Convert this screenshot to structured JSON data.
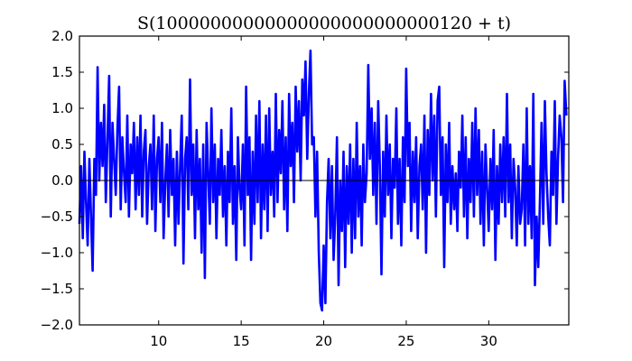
{
  "chart_data": {
    "type": "line",
    "title": "S(10000000000000000000000000120 + t)",
    "xlabel": "",
    "ylabel": "",
    "xlim": [
      5.2,
      34.85
    ],
    "ylim": [
      -2.0,
      2.0
    ],
    "x_ticks": [
      10,
      15,
      20,
      25,
      30
    ],
    "x_tick_labels": [
      "10",
      "15",
      "20",
      "25",
      "30"
    ],
    "y_ticks": [
      -2.0,
      -1.5,
      -1.0,
      -0.5,
      0.0,
      0.5,
      1.0,
      1.5,
      2.0
    ],
    "y_tick_labels": [
      "−2.0",
      "−1.5",
      "−1.0",
      "−0.5",
      "0.0",
      "0.5",
      "1.0",
      "1.5",
      "2.0"
    ],
    "grid": false,
    "zero_line": true,
    "line_color": "#0000ff",
    "zero_line_color": "#000000",
    "series": [
      {
        "x_start": 5.2,
        "x_step": 0.1,
        "values": [
          -0.6,
          0.2,
          -0.8,
          0.4,
          -0.3,
          -0.9,
          0.3,
          -0.5,
          -1.25,
          0.3,
          -0.2,
          1.57,
          0.0,
          0.8,
          0.2,
          1.05,
          -0.3,
          0.6,
          1.45,
          -0.5,
          0.8,
          0.3,
          -0.2,
          0.7,
          1.3,
          -0.4,
          0.6,
          0.1,
          -0.3,
          0.9,
          -0.5,
          0.5,
          0.1,
          0.8,
          -0.4,
          0.6,
          -0.2,
          0.9,
          -0.5,
          0.4,
          0.7,
          -0.6,
          0.2,
          0.5,
          -0.4,
          0.9,
          -0.7,
          0.3,
          0.6,
          -0.3,
          0.8,
          -0.8,
          0.0,
          0.5,
          -0.5,
          0.7,
          -0.2,
          0.3,
          -0.9,
          0.4,
          -0.6,
          0.2,
          0.9,
          -1.15,
          0.3,
          0.6,
          -0.4,
          1.4,
          -0.2,
          0.5,
          -0.8,
          0.7,
          -0.4,
          0.3,
          -1.0,
          0.5,
          -1.35,
          0.8,
          0.1,
          -0.6,
          1.0,
          -0.3,
          0.5,
          -0.8,
          0.3,
          -0.2,
          0.7,
          -0.5,
          0.2,
          -0.9,
          0.4,
          -0.3,
          1.0,
          -0.6,
          0.2,
          -1.1,
          0.6,
          -0.1,
          -0.4,
          0.5,
          -0.9,
          1.3,
          -0.2,
          0.6,
          -1.1,
          0.4,
          -0.6,
          0.9,
          -0.3,
          1.1,
          -0.8,
          0.5,
          -0.4,
          0.9,
          -0.7,
          1.0,
          -0.2,
          0.4,
          -0.5,
          1.2,
          -0.3,
          0.7,
          0.1,
          1.1,
          -0.4,
          0.6,
          -0.7,
          1.2,
          0.2,
          0.8,
          -0.3,
          1.3,
          0.4,
          1.1,
          0.0,
          1.4,
          0.9,
          1.65,
          0.3,
          1.2,
          1.8,
          0.5,
          0.6,
          -0.5,
          0.4,
          -1.0,
          -1.7,
          -1.8,
          -0.9,
          -1.7,
          -0.3,
          0.3,
          -0.8,
          0.2,
          -1.1,
          -0.5,
          0.6,
          -1.45,
          0.0,
          -0.7,
          0.4,
          -1.2,
          0.2,
          -0.6,
          0.5,
          -1.0,
          0.3,
          -0.8,
          0.8,
          -0.5,
          0.2,
          -0.9,
          0.5,
          -0.3,
          0.1,
          1.6,
          0.3,
          1.0,
          -0.2,
          0.8,
          -0.6,
          1.1,
          0.2,
          -1.3,
          0.4,
          -0.5,
          0.9,
          -0.2,
          0.5,
          -0.8,
          0.3,
          -0.1,
          1.0,
          -0.6,
          0.3,
          -0.9,
          0.6,
          -0.3,
          1.55,
          0.2,
          0.8,
          -0.7,
          0.4,
          -0.3,
          0.6,
          -0.8,
          0.2,
          0.5,
          -0.4,
          0.9,
          -1.0,
          0.7,
          -0.2,
          1.2,
          0.0,
          0.9,
          -0.5,
          1.1,
          1.3,
          -0.2,
          0.6,
          -1.2,
          0.5,
          -0.3,
          0.8,
          -0.6,
          0.2,
          -0.4,
          0.1,
          -0.7,
          0.4,
          -0.1,
          0.9,
          -0.5,
          0.6,
          -0.8,
          0.3,
          -0.3,
          0.8,
          -0.5,
          1.0,
          -0.2,
          0.7,
          -0.6,
          0.4,
          -0.9,
          0.5,
          -0.1,
          -0.7,
          0.3,
          -0.4,
          0.7,
          -1.1,
          0.2,
          -0.6,
          0.5,
          -0.3,
          0.6,
          -0.5,
          1.2,
          -0.3,
          0.5,
          -0.8,
          0.3,
          -0.1,
          -0.9,
          0.2,
          -0.6,
          -0.4,
          0.5,
          -0.9,
          1.0,
          -0.6,
          0.2,
          -0.8,
          1.2,
          -1.45,
          -0.5,
          -1.2,
          -0.3,
          0.8,
          -0.6,
          1.1,
          0.1,
          -0.5,
          -0.9,
          0.4,
          -0.2,
          1.1,
          -0.6,
          0.3,
          0.9,
          0.6,
          -0.3,
          1.38,
          0.9
        ]
      }
    ]
  }
}
